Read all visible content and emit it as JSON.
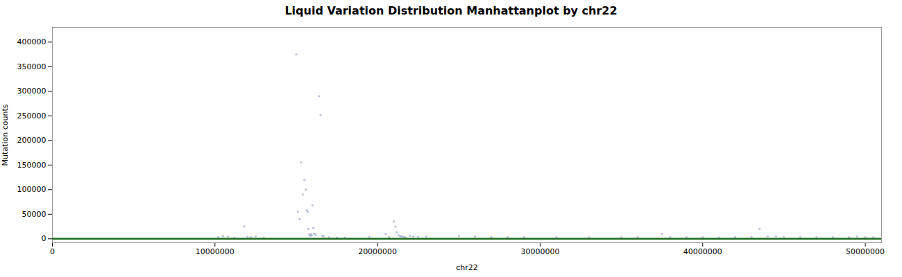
{
  "chart_data": {
    "type": "scatter",
    "title": "Liquid Variation Distribution Manhattanplot by chr22",
    "xlabel": "chr22",
    "ylabel": "Mutation counts",
    "color": "#8090c0",
    "grid": false,
    "baseline": {
      "y": 0,
      "color": "#1a6b1a"
    },
    "xlim": [
      0,
      51000000
    ],
    "ylim": [
      -8000,
      430000
    ],
    "xticks": [
      0,
      10000000,
      20000000,
      30000000,
      40000000,
      50000000
    ],
    "yticks": [
      0,
      50000,
      100000,
      150000,
      200000,
      250000,
      300000,
      350000,
      400000
    ],
    "x": [
      10200000,
      10500000,
      10800000,
      11200000,
      11800000,
      12000000,
      12200000,
      12500000,
      13000000,
      15000000,
      15100000,
      15200000,
      15300000,
      15400000,
      15500000,
      15600000,
      15650000,
      15700000,
      15750000,
      15800000,
      15850000,
      15900000,
      15950000,
      16000000,
      16050000,
      16100000,
      16200000,
      16400000,
      16500000,
      16600000,
      16700000,
      17000000,
      17500000,
      18000000,
      19500000,
      20500000,
      20700000,
      21000000,
      21100000,
      21200000,
      21300000,
      21400000,
      21500000,
      21600000,
      21700000,
      22000000,
      22200000,
      22500000,
      23000000,
      25000000,
      26000000,
      27000000,
      28000000,
      29000000,
      31000000,
      33000000,
      35000000,
      36000000,
      37500000,
      38000000,
      39000000,
      40000000,
      41000000,
      42000000,
      43000000,
      43500000,
      44000000,
      44500000,
      45000000,
      46000000,
      47000000,
      48000000,
      49000000,
      49500000,
      50000000,
      50500000
    ],
    "values": [
      3500,
      5500,
      4500,
      2500,
      25000,
      4000,
      3500,
      5000,
      2000,
      375000,
      55000,
      40000,
      155000,
      90000,
      120000,
      100000,
      58000,
      55000,
      20000,
      9000,
      6000,
      9000,
      7000,
      68000,
      22000,
      10000,
      8000,
      290000,
      252000,
      6000,
      5000,
      3000,
      2500,
      2500,
      4000,
      10000,
      3500,
      35000,
      25000,
      13000,
      7000,
      5000,
      5000,
      4000,
      3000,
      6000,
      4500,
      4500,
      4500,
      6000,
      4500,
      3500,
      3000,
      3000,
      3000,
      3000,
      3000,
      3000,
      10000,
      3500,
      3000,
      3000,
      2500,
      3000,
      3500,
      20000,
      5000,
      5000,
      3000,
      3000,
      3000,
      3000,
      3000,
      5000,
      3000,
      3000
    ]
  }
}
